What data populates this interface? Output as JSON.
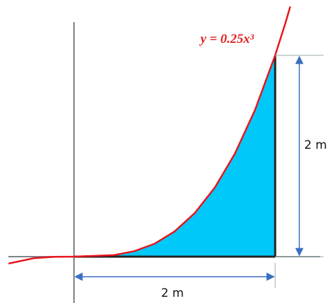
{
  "equation": "y = 0.25x³",
  "width_label": "2 m",
  "height_label": "2 m"
}
